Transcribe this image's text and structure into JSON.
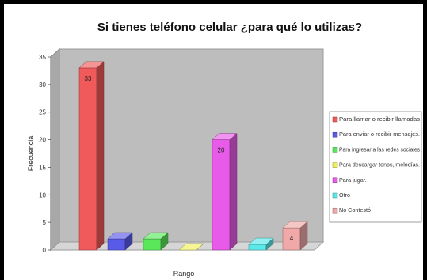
{
  "chart_data": {
    "type": "bar",
    "title": "Si tienes teléfono celular ¿para qué lo utilizas?",
    "xlabel": "Rango",
    "ylabel": "Frecuencia",
    "ylim": [
      0,
      35
    ],
    "yticks": [
      "0",
      "5",
      "10",
      "15",
      "20",
      "25",
      "30",
      "35"
    ],
    "grid": false,
    "legend_position": "right",
    "categories": [
      "Para llamar o recibir llamadas",
      "Para enviar o recibir mensajes.",
      "Para ingresar a las redes sociales",
      "Para descargar tonos, melodías.",
      "Para jugar.",
      "Otro",
      "No Contestó"
    ],
    "values": [
      33,
      2,
      2,
      0,
      20,
      1,
      4
    ],
    "data_labels": [
      "33",
      "",
      "",
      "",
      "20",
      "",
      "4"
    ],
    "colors": [
      "#f05a5a",
      "#5a5ae8",
      "#5ae85a",
      "#f0f05a",
      "#e85ae8",
      "#5ae8e8",
      "#f0a8a8"
    ]
  }
}
